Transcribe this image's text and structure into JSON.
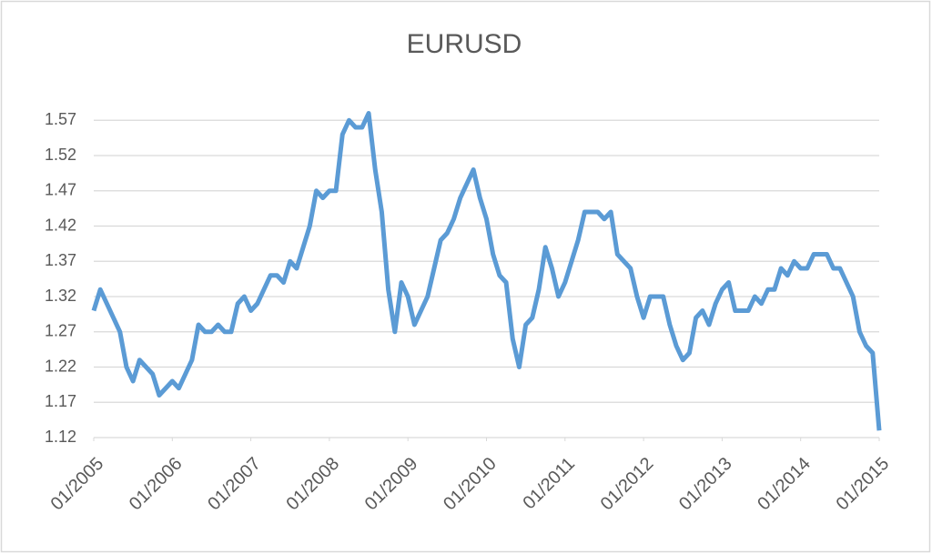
{
  "chart_data": {
    "type": "line",
    "title": "EURUSD",
    "x": [
      "2005-01",
      "2005-02",
      "2005-03",
      "2005-04",
      "2005-05",
      "2005-06",
      "2005-07",
      "2005-08",
      "2005-09",
      "2005-10",
      "2005-11",
      "2005-12",
      "2006-01",
      "2006-02",
      "2006-03",
      "2006-04",
      "2006-05",
      "2006-06",
      "2006-07",
      "2006-08",
      "2006-09",
      "2006-10",
      "2006-11",
      "2006-12",
      "2007-01",
      "2007-02",
      "2007-03",
      "2007-04",
      "2007-05",
      "2007-06",
      "2007-07",
      "2007-08",
      "2007-09",
      "2007-10",
      "2007-11",
      "2007-12",
      "2008-01",
      "2008-02",
      "2008-03",
      "2008-04",
      "2008-05",
      "2008-06",
      "2008-07",
      "2008-08",
      "2008-09",
      "2008-10",
      "2008-11",
      "2008-12",
      "2009-01",
      "2009-02",
      "2009-03",
      "2009-04",
      "2009-05",
      "2009-06",
      "2009-07",
      "2009-08",
      "2009-09",
      "2009-10",
      "2009-11",
      "2009-12",
      "2010-01",
      "2010-02",
      "2010-03",
      "2010-04",
      "2010-05",
      "2010-06",
      "2010-07",
      "2010-08",
      "2010-09",
      "2010-10",
      "2010-11",
      "2010-12",
      "2011-01",
      "2011-02",
      "2011-03",
      "2011-04",
      "2011-05",
      "2011-06",
      "2011-07",
      "2011-08",
      "2011-09",
      "2011-10",
      "2011-11",
      "2011-12",
      "2012-01",
      "2012-02",
      "2012-03",
      "2012-04",
      "2012-05",
      "2012-06",
      "2012-07",
      "2012-08",
      "2012-09",
      "2012-10",
      "2012-11",
      "2012-12",
      "2013-01",
      "2013-02",
      "2013-03",
      "2013-04",
      "2013-05",
      "2013-06",
      "2013-07",
      "2013-08",
      "2013-09",
      "2013-10",
      "2013-11",
      "2013-12",
      "2014-01",
      "2014-02",
      "2014-03",
      "2014-04",
      "2014-05",
      "2014-06",
      "2014-07",
      "2014-08",
      "2014-09",
      "2014-10",
      "2014-11",
      "2014-12",
      "2015-01"
    ],
    "series": [
      {
        "name": "EURUSD",
        "color": "#5b9bd5",
        "values": [
          1.3,
          1.33,
          1.31,
          1.29,
          1.27,
          1.22,
          1.2,
          1.23,
          1.22,
          1.21,
          1.18,
          1.19,
          1.2,
          1.19,
          1.21,
          1.23,
          1.28,
          1.27,
          1.27,
          1.28,
          1.27,
          1.27,
          1.31,
          1.32,
          1.3,
          1.31,
          1.33,
          1.35,
          1.35,
          1.34,
          1.37,
          1.36,
          1.39,
          1.42,
          1.47,
          1.46,
          1.47,
          1.47,
          1.55,
          1.57,
          1.56,
          1.56,
          1.58,
          1.5,
          1.44,
          1.33,
          1.27,
          1.34,
          1.32,
          1.28,
          1.3,
          1.32,
          1.36,
          1.4,
          1.41,
          1.43,
          1.46,
          1.48,
          1.5,
          1.46,
          1.43,
          1.38,
          1.35,
          1.34,
          1.26,
          1.22,
          1.28,
          1.29,
          1.33,
          1.39,
          1.36,
          1.32,
          1.34,
          1.37,
          1.4,
          1.44,
          1.44,
          1.44,
          1.43,
          1.44,
          1.38,
          1.37,
          1.36,
          1.32,
          1.29,
          1.32,
          1.32,
          1.32,
          1.28,
          1.25,
          1.23,
          1.24,
          1.29,
          1.3,
          1.28,
          1.31,
          1.33,
          1.34,
          1.3,
          1.3,
          1.3,
          1.32,
          1.31,
          1.33,
          1.33,
          1.36,
          1.35,
          1.37,
          1.36,
          1.36,
          1.38,
          1.38,
          1.38,
          1.36,
          1.36,
          1.34,
          1.32,
          1.27,
          1.25,
          1.24,
          1.13
        ]
      }
    ],
    "xticks": [
      {
        "value": "2005-01",
        "label": "01/2005"
      },
      {
        "value": "2006-01",
        "label": "01/2006"
      },
      {
        "value": "2007-01",
        "label": "01/2007"
      },
      {
        "value": "2008-01",
        "label": "01/2008"
      },
      {
        "value": "2009-01",
        "label": "01/2009"
      },
      {
        "value": "2010-01",
        "label": "01/2010"
      },
      {
        "value": "2011-01",
        "label": "01/2011"
      },
      {
        "value": "2012-01",
        "label": "01/2012"
      },
      {
        "value": "2013-01",
        "label": "01/2013"
      },
      {
        "value": "2014-01",
        "label": "01/2014"
      },
      {
        "value": "2015-01",
        "label": "01/2015"
      }
    ],
    "ylim": [
      1.12,
      1.6
    ],
    "yticks": [
      1.12,
      1.17,
      1.22,
      1.27,
      1.32,
      1.37,
      1.42,
      1.47,
      1.52,
      1.57
    ],
    "grid": true
  }
}
